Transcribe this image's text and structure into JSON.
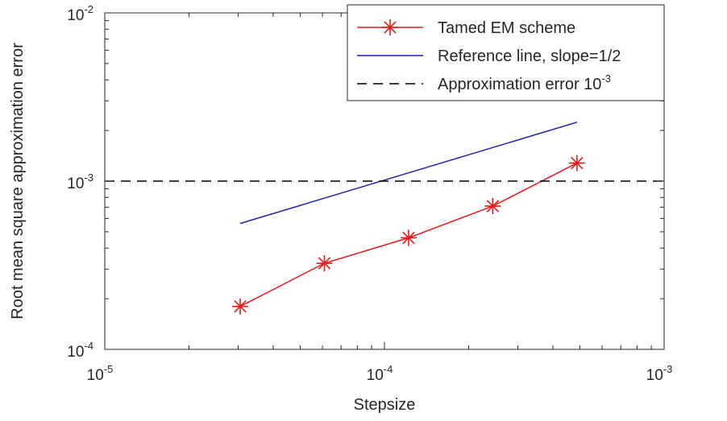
{
  "chart_data": {
    "type": "line",
    "xlabel": "Stepsize",
    "ylabel": "Root mean square approximation error",
    "xscale": "log",
    "yscale": "log",
    "xlim": [
      1e-05,
      0.001
    ],
    "ylim": [
      0.0001,
      0.01
    ],
    "grid": false,
    "legend_position": "top-right",
    "x_ticks": [
      {
        "value": 1e-05,
        "base": "10",
        "exp": "-5"
      },
      {
        "value": 0.0001,
        "base": "10",
        "exp": "-4"
      },
      {
        "value": 0.001,
        "base": "10",
        "exp": "-3"
      }
    ],
    "y_ticks": [
      {
        "value": 0.0001,
        "base": "10",
        "exp": "-4"
      },
      {
        "value": 0.001,
        "base": "10",
        "exp": "-3"
      },
      {
        "value": 0.01,
        "base": "10",
        "exp": "-2"
      }
    ],
    "series": [
      {
        "name": "Tamed EM scheme",
        "color": "#e31a1c",
        "marker": "asterisk",
        "style": "solid",
        "x": [
          3.05e-05,
          6.1e-05,
          0.000122,
          0.000244,
          0.000488
        ],
        "y": [
          0.00018,
          0.000325,
          0.00046,
          0.00071,
          0.00128
        ]
      },
      {
        "name": "Reference line, slope=1/2",
        "color": "#1f1fa8",
        "marker": "none",
        "style": "solid",
        "x": [
          3.05e-05,
          0.000488
        ],
        "y": [
          0.00056,
          0.00224
        ]
      },
      {
        "name_main": "Approximation error 10",
        "name_exp": "-3",
        "color": "#000000",
        "marker": "none",
        "style": "dashed",
        "x": [
          1e-05,
          0.001
        ],
        "y": [
          0.001,
          0.001
        ]
      }
    ]
  }
}
